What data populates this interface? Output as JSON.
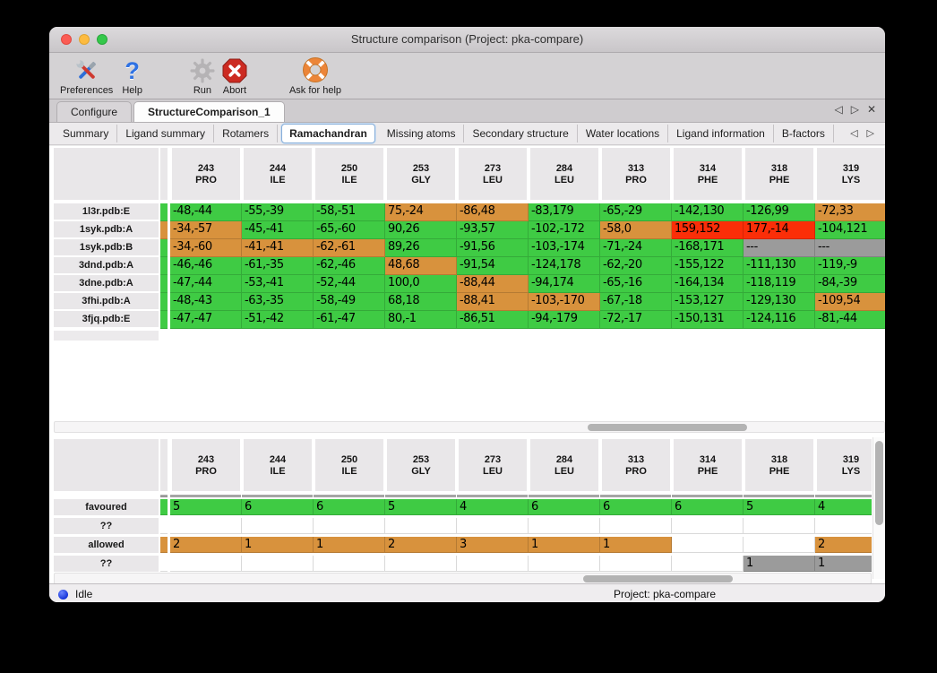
{
  "window": {
    "title": "Structure comparison (Project: pka-compare)"
  },
  "toolbar": {
    "items": [
      {
        "id": "preferences",
        "label": "Preferences",
        "icon": "tools-icon"
      },
      {
        "id": "help",
        "label": "Help",
        "icon": "question-mark-icon"
      },
      {
        "id": "run",
        "label": "Run",
        "icon": "gear-icon"
      },
      {
        "id": "abort",
        "label": "Abort",
        "icon": "stop-icon"
      },
      {
        "id": "ask-for-help",
        "label": "Ask for help",
        "icon": "life-ring-icon"
      }
    ]
  },
  "main_tabs": [
    {
      "label": "Configure",
      "active": false
    },
    {
      "label": "StructureComparison_1",
      "active": true
    }
  ],
  "sub_tabs": [
    {
      "label": "Summary",
      "active": false
    },
    {
      "label": "Ligand summary",
      "active": false
    },
    {
      "label": "Rotamers",
      "active": false
    },
    {
      "label": "Ramachandran",
      "active": true
    },
    {
      "label": "Missing atoms",
      "active": false
    },
    {
      "label": "Secondary structure",
      "active": false
    },
    {
      "label": "Water locations",
      "active": false
    },
    {
      "label": "Ligand information",
      "active": false
    },
    {
      "label": "B-factors",
      "active": false
    }
  ],
  "icons": {
    "left_arrow": "◁",
    "right_arrow": "▷",
    "close": "✕"
  },
  "colors": {
    "favoured": "#3fcb44",
    "allowed": "#d8923d",
    "outlier": "#fb2e08",
    "missing": "#9b9b9b",
    "header_bg": "#e9e7e9",
    "active_subtab_border": "#87aed9",
    "status_dot": "#1533d8"
  },
  "ramachandran_table": {
    "columns": [
      {
        "num": "243",
        "res": "PRO"
      },
      {
        "num": "244",
        "res": "ILE"
      },
      {
        "num": "250",
        "res": "ILE"
      },
      {
        "num": "253",
        "res": "GLY"
      },
      {
        "num": "273",
        "res": "LEU"
      },
      {
        "num": "284",
        "res": "LEU"
      },
      {
        "num": "313",
        "res": "PRO"
      },
      {
        "num": "314",
        "res": "PHE"
      },
      {
        "num": "318",
        "res": "PHE"
      },
      {
        "num": "319",
        "res": "LYS"
      }
    ],
    "rows": [
      {
        "label": "1l3r.pdb:E",
        "strip": "g",
        "edge": "g",
        "cells": [
          [
            "-48,-44",
            "g"
          ],
          [
            "-55,-39",
            "g"
          ],
          [
            "-58,-51",
            "g"
          ],
          [
            "75,-24",
            "o"
          ],
          [
            "-86,48",
            "o"
          ],
          [
            "-83,179",
            "g"
          ],
          [
            "-65,-29",
            "g"
          ],
          [
            "-142,130",
            "g"
          ],
          [
            "-126,99",
            "g"
          ],
          [
            "-72,33",
            "o"
          ]
        ]
      },
      {
        "label": "1syk.pdb:A",
        "strip": "o",
        "edge": "r",
        "cells": [
          [
            "-34,-57",
            "o"
          ],
          [
            "-45,-41",
            "g"
          ],
          [
            "-65,-60",
            "g"
          ],
          [
            "90,26",
            "g"
          ],
          [
            "-93,57",
            "g"
          ],
          [
            "-102,-172",
            "g"
          ],
          [
            "-58,0",
            "o"
          ],
          [
            "159,152",
            "r"
          ],
          [
            "177,-14",
            "r"
          ],
          [
            "-104,121",
            "g"
          ]
        ]
      },
      {
        "label": "1syk.pdb:B",
        "strip": "g",
        "edge": "x",
        "cells": [
          [
            "-34,-60",
            "o"
          ],
          [
            "-41,-41",
            "o"
          ],
          [
            "-62,-61",
            "o"
          ],
          [
            "89,26",
            "g"
          ],
          [
            "-91,56",
            "g"
          ],
          [
            "-103,-174",
            "g"
          ],
          [
            "-71,-24",
            "g"
          ],
          [
            "-168,171",
            "g"
          ],
          [
            "---",
            "x"
          ],
          [
            "---",
            "x"
          ]
        ]
      },
      {
        "label": "3dnd.pdb:A",
        "strip": "g",
        "edge": "g",
        "cells": [
          [
            "-46,-46",
            "g"
          ],
          [
            "-61,-35",
            "g"
          ],
          [
            "-62,-46",
            "g"
          ],
          [
            "48,68",
            "o"
          ],
          [
            "-91,54",
            "g"
          ],
          [
            "-124,178",
            "g"
          ],
          [
            "-62,-20",
            "g"
          ],
          [
            "-155,122",
            "g"
          ],
          [
            "-111,130",
            "g"
          ],
          [
            "-119,-9",
            "g"
          ]
        ]
      },
      {
        "label": "3dne.pdb:A",
        "strip": "g",
        "edge": "g",
        "cells": [
          [
            "-47,-44",
            "g"
          ],
          [
            "-53,-41",
            "g"
          ],
          [
            "-52,-44",
            "g"
          ],
          [
            "100,0",
            "g"
          ],
          [
            "-88,44",
            "o"
          ],
          [
            "-94,174",
            "g"
          ],
          [
            "-65,-16",
            "g"
          ],
          [
            "-164,134",
            "g"
          ],
          [
            "-118,119",
            "g"
          ],
          [
            "-84,-39",
            "g"
          ]
        ]
      },
      {
        "label": "3fhi.pdb:A",
        "strip": "g",
        "edge": "g",
        "cells": [
          [
            "-48,-43",
            "g"
          ],
          [
            "-63,-35",
            "g"
          ],
          [
            "-58,-49",
            "g"
          ],
          [
            "68,18",
            "g"
          ],
          [
            "-88,41",
            "o"
          ],
          [
            "-103,-170",
            "o"
          ],
          [
            "-67,-18",
            "g"
          ],
          [
            "-153,127",
            "g"
          ],
          [
            "-129,130",
            "g"
          ],
          [
            "-109,54",
            "o"
          ]
        ]
      },
      {
        "label": "3fjq.pdb:E",
        "strip": "g",
        "edge": "g",
        "cells": [
          [
            "-47,-47",
            "g"
          ],
          [
            "-51,-42",
            "g"
          ],
          [
            "-61,-47",
            "g"
          ],
          [
            "80,-1",
            "g"
          ],
          [
            "-86,51",
            "g"
          ],
          [
            "-94,-179",
            "g"
          ],
          [
            "-72,-17",
            "g"
          ],
          [
            "-150,131",
            "g"
          ],
          [
            "-124,116",
            "g"
          ],
          [
            "-81,-44",
            "g"
          ]
        ]
      }
    ]
  },
  "summary_table": {
    "columns": [
      {
        "num": "243",
        "res": "PRO"
      },
      {
        "num": "244",
        "res": "ILE"
      },
      {
        "num": "250",
        "res": "ILE"
      },
      {
        "num": "253",
        "res": "GLY"
      },
      {
        "num": "273",
        "res": "LEU"
      },
      {
        "num": "284",
        "res": "LEU"
      },
      {
        "num": "313",
        "res": "PRO"
      },
      {
        "num": "314",
        "res": "PHE"
      },
      {
        "num": "318",
        "res": "PHE"
      },
      {
        "num": "319",
        "res": "LYS"
      }
    ],
    "rows": [
      {
        "label": "favoured",
        "strip": "g",
        "cells": [
          [
            "5",
            "g"
          ],
          [
            "6",
            "g"
          ],
          [
            "6",
            "g"
          ],
          [
            "5",
            "g"
          ],
          [
            "4",
            "g"
          ],
          [
            "6",
            "g"
          ],
          [
            "6",
            "g"
          ],
          [
            "6",
            "g"
          ],
          [
            "5",
            "g"
          ],
          [
            "4",
            "g"
          ]
        ]
      },
      {
        "label": "??",
        "strip": "w",
        "cells": [
          [
            "",
            "w"
          ],
          [
            "",
            "w"
          ],
          [
            "",
            "w"
          ],
          [
            "",
            "w"
          ],
          [
            "",
            "w"
          ],
          [
            "",
            "w"
          ],
          [
            "",
            "w"
          ],
          [
            "",
            "w"
          ],
          [
            "",
            "w"
          ],
          [
            "",
            "w"
          ]
        ]
      },
      {
        "label": "allowed",
        "strip": "o",
        "cells": [
          [
            "2",
            "o"
          ],
          [
            "1",
            "o"
          ],
          [
            "1",
            "o"
          ],
          [
            "2",
            "o"
          ],
          [
            "3",
            "o"
          ],
          [
            "1",
            "o"
          ],
          [
            "1",
            "o"
          ],
          [
            "",
            "w"
          ],
          [
            "",
            "w"
          ],
          [
            "2",
            "o"
          ]
        ]
      },
      {
        "label": "??",
        "strip": "w",
        "cells": [
          [
            "",
            "w"
          ],
          [
            "",
            "w"
          ],
          [
            "",
            "w"
          ],
          [
            "",
            "w"
          ],
          [
            "",
            "w"
          ],
          [
            "",
            "w"
          ],
          [
            "",
            "w"
          ],
          [
            "",
            "w"
          ],
          [
            "1",
            "x"
          ],
          [
            "1",
            "x"
          ]
        ]
      }
    ],
    "partial_row": {
      "strip": "w",
      "cells": [
        "w",
        "w",
        "w",
        "w",
        "w",
        "w",
        "w",
        "r",
        "r",
        "w"
      ]
    }
  },
  "statusbar": {
    "status": "Idle",
    "project": "Project: pka-compare"
  }
}
